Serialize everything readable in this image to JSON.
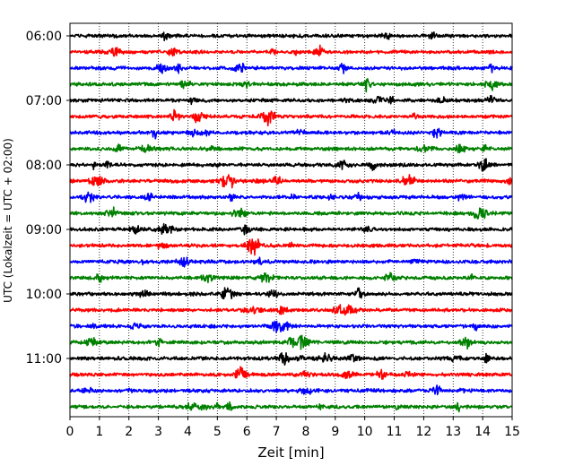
{
  "chart_data": {
    "type": "line",
    "title": "",
    "xlabel": "Zeit  [min]",
    "ylabel": "UTC (Lokalzeit = UTC + 02:00)",
    "xlim": [
      0,
      15
    ],
    "x_ticks": [
      0,
      1,
      2,
      3,
      4,
      5,
      6,
      7,
      8,
      9,
      10,
      11,
      12,
      13,
      14,
      15
    ],
    "y_tick_labels": [
      "06:00",
      "07:00",
      "08:00",
      "09:00",
      "10:00",
      "11:00"
    ],
    "trace_interval_minutes": 15,
    "start_time": "06:00",
    "trace_count": 24,
    "grid": "vertical-dotted",
    "legend": "none",
    "trace_colors": [
      "#000000",
      "#ff0000",
      "#0000ff",
      "#008000"
    ],
    "series": [
      {
        "start": "06:00",
        "color": "#000000"
      },
      {
        "start": "06:15",
        "color": "#ff0000"
      },
      {
        "start": "06:30",
        "color": "#0000ff"
      },
      {
        "start": "06:45",
        "color": "#008000"
      },
      {
        "start": "07:00",
        "color": "#000000"
      },
      {
        "start": "07:15",
        "color": "#ff0000"
      },
      {
        "start": "07:30",
        "color": "#0000ff"
      },
      {
        "start": "07:45",
        "color": "#008000"
      },
      {
        "start": "08:00",
        "color": "#000000"
      },
      {
        "start": "08:15",
        "color": "#ff0000"
      },
      {
        "start": "08:30",
        "color": "#0000ff"
      },
      {
        "start": "08:45",
        "color": "#008000"
      },
      {
        "start": "09:00",
        "color": "#000000"
      },
      {
        "start": "09:15",
        "color": "#ff0000"
      },
      {
        "start": "09:30",
        "color": "#0000ff"
      },
      {
        "start": "09:45",
        "color": "#008000"
      },
      {
        "start": "10:00",
        "color": "#000000"
      },
      {
        "start": "10:15",
        "color": "#ff0000"
      },
      {
        "start": "10:30",
        "color": "#0000ff"
      },
      {
        "start": "10:45",
        "color": "#008000"
      },
      {
        "start": "11:00",
        "color": "#000000"
      },
      {
        "start": "11:15",
        "color": "#ff0000"
      },
      {
        "start": "11:30",
        "color": "#0000ff"
      },
      {
        "start": "11:45",
        "color": "#008000"
      }
    ]
  }
}
